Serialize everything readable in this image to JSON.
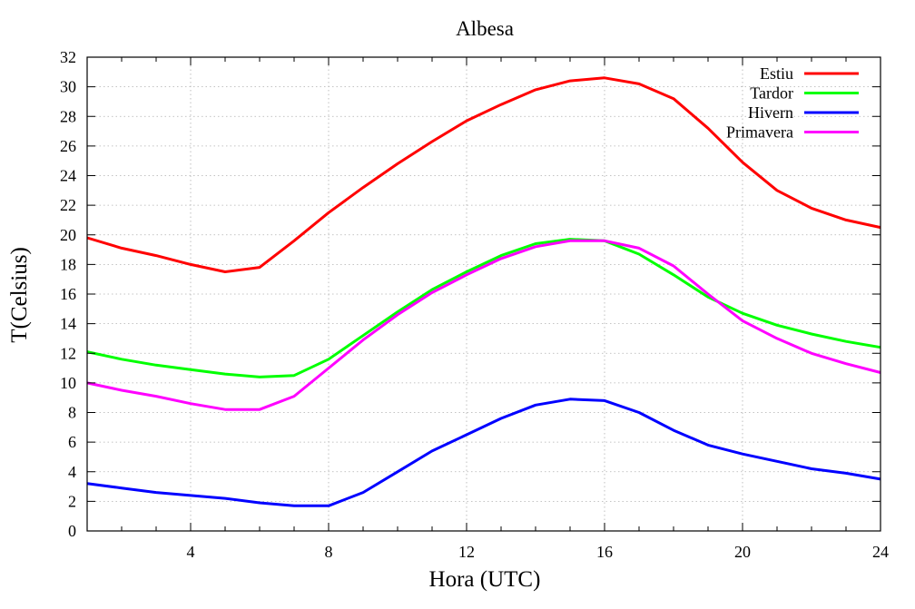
{
  "chart_data": {
    "type": "line",
    "title": "Albesa",
    "xlabel": "Hora (UTC)",
    "ylabel": "T(Celsius)",
    "xlim": [
      1,
      24
    ],
    "ylim": [
      0,
      32
    ],
    "x_ticks": [
      4,
      8,
      12,
      16,
      20,
      24
    ],
    "y_ticks": [
      0,
      2,
      4,
      6,
      8,
      10,
      12,
      14,
      16,
      18,
      20,
      22,
      24,
      26,
      28,
      30,
      32
    ],
    "grid": true,
    "legend_position": "top-right",
    "x": [
      1,
      2,
      3,
      4,
      5,
      6,
      7,
      8,
      9,
      10,
      11,
      12,
      13,
      14,
      15,
      16,
      17,
      18,
      19,
      20,
      21,
      22,
      23,
      24
    ],
    "series": [
      {
        "name": "Estiu",
        "color": "#ff0000",
        "values": [
          19.8,
          19.1,
          18.6,
          18.0,
          17.5,
          17.8,
          19.6,
          21.5,
          23.2,
          24.8,
          26.3,
          27.7,
          28.8,
          29.8,
          30.4,
          30.6,
          30.2,
          29.2,
          27.2,
          24.9,
          23.0,
          21.8,
          21.0,
          20.5
        ]
      },
      {
        "name": "Tardor",
        "color": "#00ff00",
        "values": [
          12.1,
          11.6,
          11.2,
          10.9,
          10.6,
          10.4,
          10.5,
          11.6,
          13.2,
          14.8,
          16.3,
          17.5,
          18.6,
          19.4,
          19.7,
          19.6,
          18.7,
          17.3,
          15.8,
          14.7,
          13.9,
          13.3,
          12.8,
          12.4
        ]
      },
      {
        "name": "Hivern",
        "color": "#0000ff",
        "values": [
          3.2,
          2.9,
          2.6,
          2.4,
          2.2,
          1.9,
          1.7,
          1.7,
          2.6,
          4.0,
          5.4,
          6.5,
          7.6,
          8.5,
          8.9,
          8.8,
          8.0,
          6.8,
          5.8,
          5.2,
          4.7,
          4.2,
          3.9,
          3.5
        ]
      },
      {
        "name": "Primavera",
        "color": "#ff00ff",
        "values": [
          10.0,
          9.5,
          9.1,
          8.6,
          8.2,
          8.2,
          9.1,
          11.0,
          12.9,
          14.6,
          16.1,
          17.3,
          18.4,
          19.2,
          19.6,
          19.6,
          19.1,
          17.9,
          16.0,
          14.2,
          13.0,
          12.0,
          11.3,
          10.7
        ]
      }
    ]
  }
}
